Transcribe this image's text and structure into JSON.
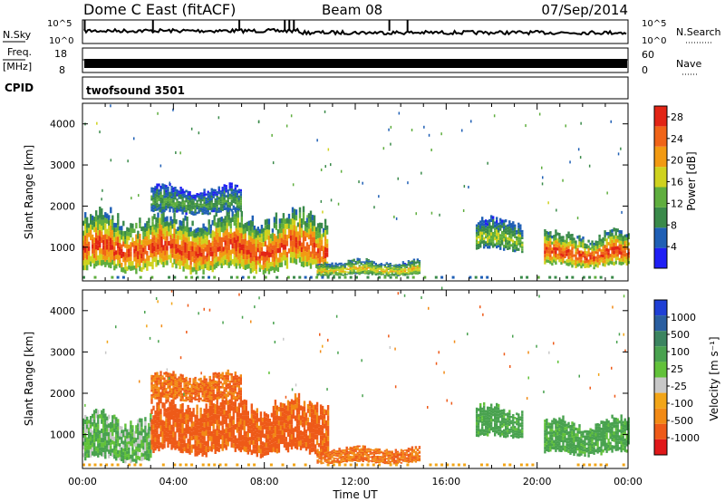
{
  "header": {
    "station": "Dome C East (fitACF)",
    "beam": "Beam 08",
    "date": "07/Sep/2014"
  },
  "strips": {
    "nsky_label": "N.Sky",
    "nsky_ticks": [
      "10^5",
      "10^0"
    ],
    "nsearch_label": "N.Search",
    "nsearch_ticks": [
      "10^5",
      "10^0"
    ],
    "freq_label_1": "Freq.",
    "freq_label_2": "[MHz]",
    "freq_ticks": [
      "18",
      "8"
    ],
    "nave_label": "Nave",
    "nave_ticks": [
      "60",
      "0"
    ],
    "cpid_label": "CPID",
    "cpid_value": "twofsound 3501"
  },
  "panels": {
    "ylabel": "Slant Range [km]",
    "yticks": [
      "4000",
      "3000",
      "2000",
      "1000"
    ],
    "xlabel": "Time UT",
    "xticks": [
      "00:00",
      "04:00",
      "08:00",
      "12:00",
      "16:00",
      "20:00",
      "00:00"
    ],
    "power_label": "Power [dB]",
    "velocity_label": "Velocity [m s⁻¹]"
  },
  "colors": {
    "power_scale": [
      "#1f1ff5",
      "#1f5fb5",
      "#3a8a4a",
      "#5fae3e",
      "#cfd21e",
      "#f29a12",
      "#f06418",
      "#e22515"
    ],
    "velocity_scale": [
      "#1f3fd5",
      "#2a5ea0",
      "#3b8460",
      "#49a24f",
      "#62c23a",
      "#c8c8c8",
      "#f2a518",
      "#f28a15",
      "#ee5a18",
      "#e0181a"
    ]
  },
  "chart_data": [
    {
      "type": "heatmap",
      "title": "Power",
      "xlabel": "Time UT",
      "ylabel": "Slant Range [km]",
      "x_range": [
        "00:00",
        "24:00"
      ],
      "ylim": [
        180,
        4500
      ],
      "colorbar_label": "Power [dB]",
      "colorbar_ticks": [
        4,
        8,
        12,
        16,
        20,
        24,
        28
      ],
      "colorbar_range": [
        0,
        30
      ],
      "echo_regions": [
        {
          "t_start": 0.0,
          "t_end": 10.8,
          "r_low": 400,
          "r_high": 1900,
          "peak_db": 28
        },
        {
          "t_start": 3.0,
          "t_end": 7.0,
          "r_low": 1800,
          "r_high": 2500,
          "peak_db": 12
        },
        {
          "t_start": 10.3,
          "t_end": 14.8,
          "r_low": 300,
          "r_high": 700,
          "peak_db": 20
        },
        {
          "t_start": 17.3,
          "t_end": 19.3,
          "r_low": 900,
          "r_high": 1700,
          "peak_db": 16
        },
        {
          "t_start": 20.3,
          "t_end": 24.0,
          "r_low": 500,
          "r_high": 1400,
          "peak_db": 28
        }
      ]
    },
    {
      "type": "heatmap",
      "title": "Velocity",
      "xlabel": "Time UT",
      "ylabel": "Slant Range [km]",
      "x_range": [
        "00:00",
        "24:00"
      ],
      "ylim": [
        180,
        4500
      ],
      "colorbar_label": "Velocity [m s⁻¹]",
      "colorbar_ticks": [
        1000,
        500,
        100,
        25,
        -25,
        -100,
        -500,
        -1000
      ],
      "echo_regions": [
        {
          "t_start": 0.0,
          "t_end": 3.0,
          "r_low": 350,
          "r_high": 1500,
          "velocity": 100
        },
        {
          "t_start": 3.0,
          "t_end": 10.8,
          "r_low": 500,
          "r_high": 1900,
          "velocity": -150
        },
        {
          "t_start": 3.0,
          "t_end": 7.0,
          "r_low": 1800,
          "r_high": 2500,
          "velocity": -100
        },
        {
          "t_start": 10.3,
          "t_end": 14.8,
          "r_low": 300,
          "r_high": 700,
          "velocity": -100
        },
        {
          "t_start": 17.3,
          "t_end": 19.3,
          "r_low": 900,
          "r_high": 1700,
          "velocity": 150
        },
        {
          "t_start": 20.3,
          "t_end": 24.0,
          "r_low": 500,
          "r_high": 1400,
          "velocity": 150
        }
      ]
    }
  ]
}
